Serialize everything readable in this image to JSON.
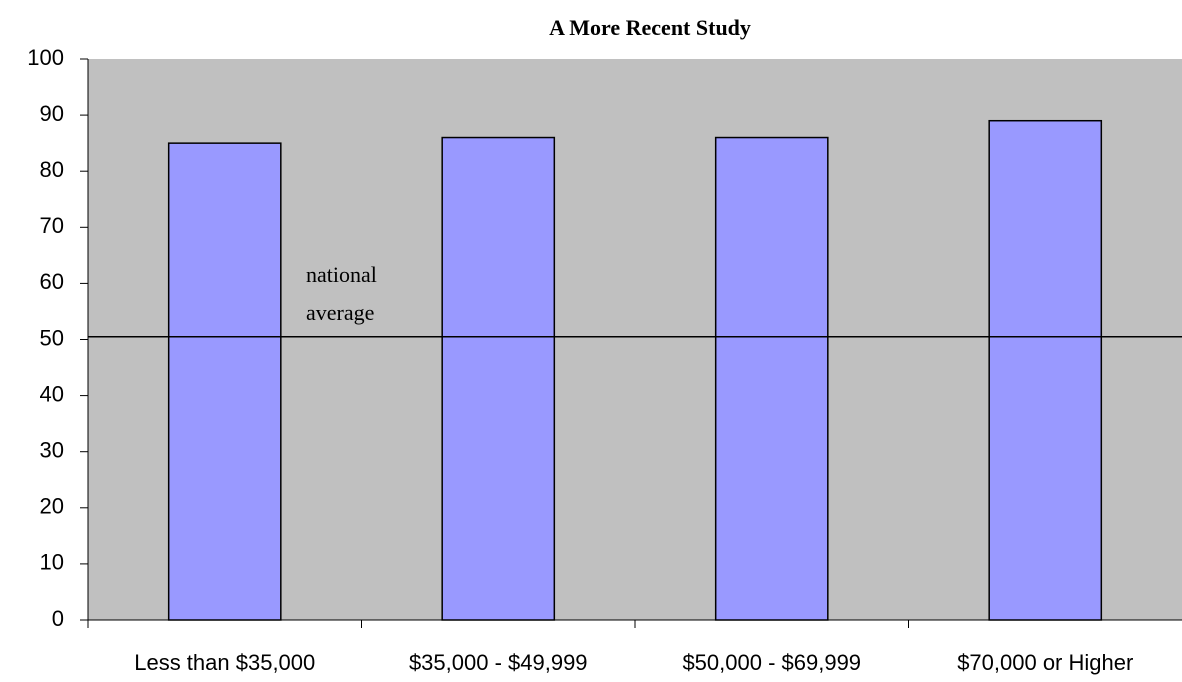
{
  "chart_data": {
    "type": "bar",
    "title": "A More Recent Study",
    "categories": [
      "Less than $35,000",
      "$35,000 - $49,999",
      "$50,000 - $69,999",
      "$70,000 or Higher"
    ],
    "values": [
      85,
      86,
      86,
      89
    ],
    "color": "#9999ff",
    "background": "#c0c0c0",
    "ylim": [
      0,
      100
    ],
    "yticks": [
      0,
      10,
      20,
      30,
      40,
      50,
      60,
      70,
      80,
      90,
      100
    ],
    "grid": false,
    "reference_line": {
      "value": 50.5,
      "label": "national average"
    }
  }
}
